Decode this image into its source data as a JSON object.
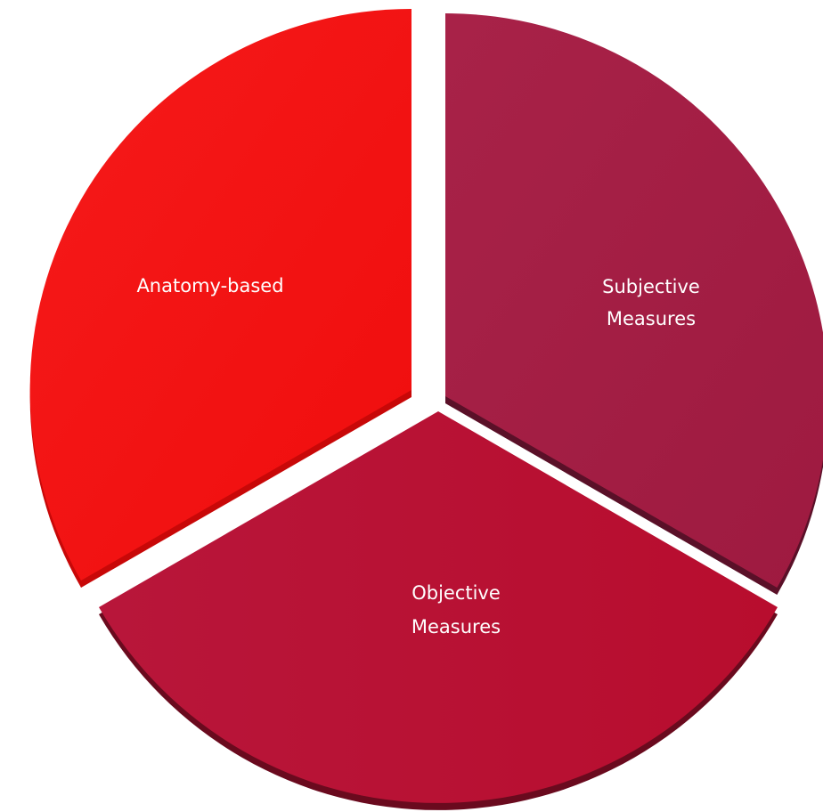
{
  "segments": [
    {
      "label": [
        "Anatomy-based"
      ]
    },
    {
      "label": [
        "Subjective",
        "Measures"
      ]
    },
    {
      "label": [
        "Objective",
        "Measures"
      ]
    }
  ]
}
